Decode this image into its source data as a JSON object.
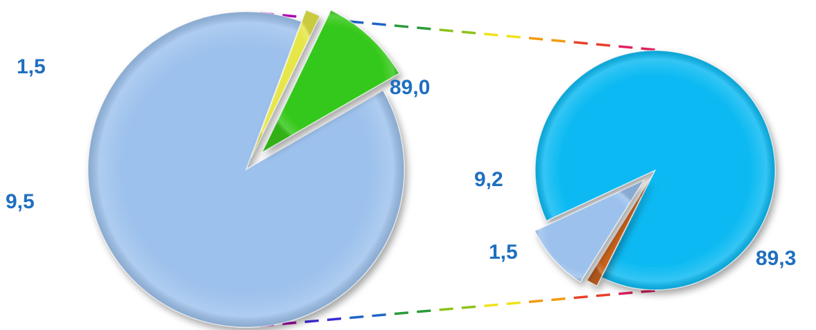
{
  "chart_data": [
    {
      "type": "pie",
      "title": "",
      "series": [
        {
          "categories": [
            "",
            "",
            ""
          ],
          "values": [
            89.0,
            1.5,
            9.5
          ],
          "labels": [
            "89,0",
            "1,5",
            "9,5"
          ],
          "colors": [
            "#9cc1ec",
            "#e6e64a",
            "#36c81a"
          ]
        }
      ],
      "legend": "none"
    },
    {
      "type": "pie",
      "title": "",
      "series": [
        {
          "categories": [
            "",
            "",
            ""
          ],
          "values": [
            89.3,
            1.5,
            9.2
          ],
          "labels": [
            "89,3",
            "1,5",
            "9,2"
          ],
          "colors": [
            "#08b9f2",
            "#c8621e",
            "#9cc1ec"
          ]
        }
      ],
      "legend": "none"
    }
  ],
  "connector": {
    "style": "dashed",
    "colors": [
      "#b000b0",
      "#3a2bd6",
      "#1f64c8",
      "#2a9a3a",
      "#8ec21a",
      "#f0e21a",
      "#f29a12",
      "#e8402a",
      "#e02060"
    ]
  }
}
